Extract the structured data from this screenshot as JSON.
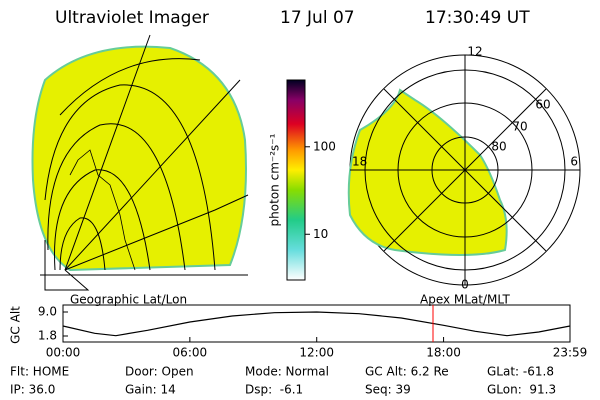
{
  "header": {
    "title": "Ultraviolet Imager",
    "date": "17 Jul 07",
    "time": "17:30:49 UT"
  },
  "colorbar": {
    "label": "photon cm⁻²s⁻¹",
    "lim": [
      3,
      580
    ],
    "ticks": [
      10,
      100
    ]
  },
  "polar": {
    "mlt_labels": [
      "12",
      "6",
      "18",
      "0"
    ],
    "lat_labels": [
      "60",
      "70",
      "80"
    ]
  },
  "captions": {
    "left": "Geographic Lat/Lon",
    "right": "Apex MLat/MLT"
  },
  "chart_data": {
    "type": "line",
    "ylabel": "GC Alt",
    "x": [
      0,
      1.5,
      2.5,
      4,
      6,
      8,
      10,
      12,
      14,
      16,
      18,
      19.5,
      21,
      22.5,
      23.98
    ],
    "series": [
      {
        "color": "#000000",
        "values": [
          4.8,
          2.6,
          1.9,
          3.5,
          6.0,
          7.8,
          8.8,
          9.0,
          8.5,
          7.2,
          5.0,
          3.2,
          1.9,
          3.0,
          4.8
        ]
      }
    ],
    "xlim": [
      0,
      23.98
    ],
    "ylim": [
      0,
      11.1
    ],
    "xticks": [
      {
        "value": 0,
        "label": "00:00"
      },
      {
        "value": 6,
        "label": "06:00"
      },
      {
        "value": 12,
        "label": "12:00"
      },
      {
        "value": 18,
        "label": "18:00"
      },
      {
        "value": 23.98,
        "label": "23:59"
      }
    ],
    "yticks": [
      {
        "value": 1.8,
        "label": "1.8"
      },
      {
        "value": 9,
        "label": "9.0"
      }
    ],
    "marker": {
      "x": 17.5,
      "color": "#ff0000"
    }
  },
  "footer": {
    "rows": [
      [
        "Flt: HOME",
        "Door: Open",
        "Mode: Normal",
        "GC Alt: 6.2 Re",
        "GLat: -61.8"
      ],
      [
        "IP: 36.0",
        "Gain: 14",
        "Dsp:  -6.1",
        "Seq: 39",
        "GLon:  91.3"
      ]
    ]
  }
}
